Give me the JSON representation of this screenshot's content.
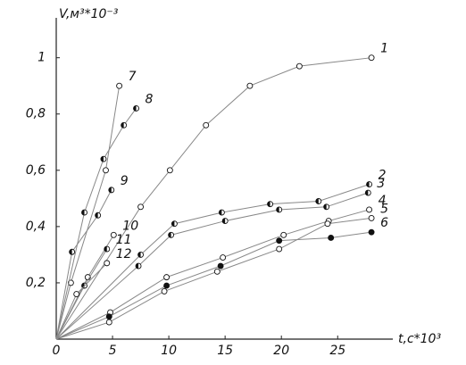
{
  "chart_data": {
    "type": "line",
    "y_label": "V,м³*10⁻³",
    "x_label": "t,c*10³",
    "xlim": [
      0,
      29.5
    ],
    "ylim": [
      0,
      1.11
    ],
    "xticks": [
      0,
      5,
      10,
      15,
      20,
      25
    ],
    "yticks": [
      {
        "value": 0.2,
        "label": "0,2"
      },
      {
        "value": 0.4,
        "label": "0,4"
      },
      {
        "value": 0.6,
        "label": "0,6"
      },
      {
        "value": 0.8,
        "label": "0,8"
      },
      1
    ],
    "line_color": "#888888",
    "marker_color": "#111111",
    "series": [
      {
        "name": "1",
        "marker": "open",
        "x": [
          0,
          7.5,
          10.1,
          13.3,
          17.2,
          21.6,
          28
        ],
        "values": [
          0,
          0.47,
          0.6,
          0.76,
          0.9,
          0.97,
          1.0
        ]
      },
      {
        "name": "2",
        "marker": "half",
        "x": [
          0,
          7.5,
          10.5,
          14.7,
          19,
          23.3,
          27.8
        ],
        "values": [
          0,
          0.3,
          0.41,
          0.45,
          0.48,
          0.49,
          0.55
        ]
      },
      {
        "name": "3",
        "marker": "half",
        "x": [
          0,
          7.3,
          10.2,
          15,
          19.8,
          24,
          27.7
        ],
        "values": [
          0,
          0.26,
          0.37,
          0.42,
          0.46,
          0.47,
          0.52
        ]
      },
      {
        "name": "4",
        "marker": "open",
        "x": [
          0,
          4.8,
          9.8,
          14.8,
          20.2,
          24.2,
          27.8
        ],
        "values": [
          0,
          0.095,
          0.22,
          0.29,
          0.37,
          0.42,
          0.46
        ]
      },
      {
        "name": "5",
        "marker": "open",
        "x": [
          0,
          4.7,
          9.6,
          14.3,
          19.8,
          24.1,
          28
        ],
        "values": [
          0,
          0.06,
          0.17,
          0.24,
          0.32,
          0.41,
          0.43
        ]
      },
      {
        "name": "6",
        "marker": "filled",
        "x": [
          0,
          4.7,
          9.8,
          14.6,
          19.8,
          24.4,
          28
        ],
        "values": [
          0,
          0.08,
          0.19,
          0.26,
          0.35,
          0.36,
          0.38
        ]
      },
      {
        "name": "7",
        "marker": "open",
        "x": [
          0,
          1.3,
          4.4,
          5.6
        ],
        "values": [
          0,
          0.2,
          0.6,
          0.9
        ]
      },
      {
        "name": "8",
        "marker": "half",
        "x": [
          0,
          2.5,
          4.2,
          6.0,
          7.1
        ],
        "values": [
          0,
          0.45,
          0.64,
          0.76,
          0.82
        ]
      },
      {
        "name": "9",
        "marker": "half",
        "x": [
          0,
          1.4,
          3.7,
          4.9
        ],
        "values": [
          0,
          0.31,
          0.44,
          0.53
        ]
      },
      {
        "name": "10",
        "marker": "open",
        "x": [
          0,
          2.8,
          5.1
        ],
        "values": [
          0,
          0.22,
          0.37
        ]
      },
      {
        "name": "11",
        "marker": "half",
        "x": [
          0,
          2.5,
          4.5
        ],
        "values": [
          0,
          0.19,
          0.32
        ]
      },
      {
        "name": "12",
        "marker": "open",
        "x": [
          0,
          1.8,
          4.5
        ],
        "values": [
          0,
          0.16,
          0.27
        ]
      }
    ]
  }
}
